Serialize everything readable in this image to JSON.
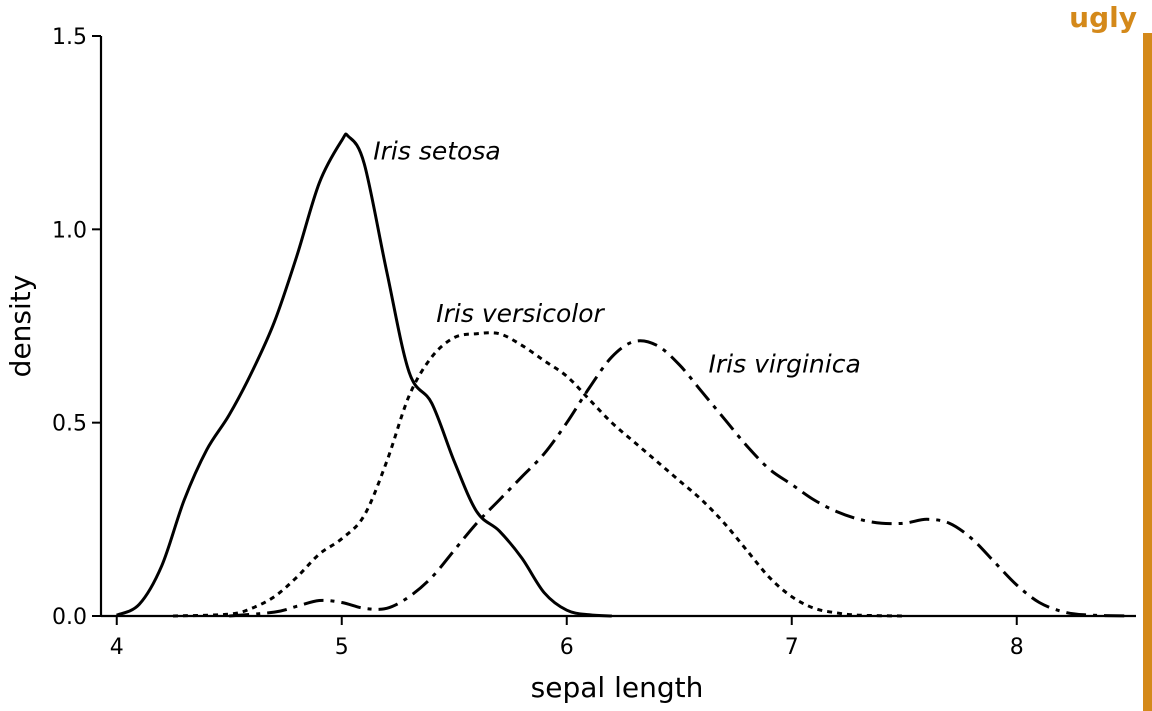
{
  "badge": {
    "text": "ugly",
    "color": "#d4891a"
  },
  "chart_data": {
    "type": "line",
    "title": "",
    "xlabel": "sepal length",
    "ylabel": "density",
    "xlim": [
      3.93,
      8.53
    ],
    "ylim": [
      0,
      1.5
    ],
    "xticks": [
      4,
      5,
      6,
      7,
      8
    ],
    "yticks": [
      0.0,
      0.5,
      1.0,
      1.5
    ],
    "ytick_labels": [
      "0.0",
      "0.5",
      "1.0",
      "1.5"
    ],
    "grid": false,
    "legend": "none",
    "series": [
      {
        "name": "Iris setosa",
        "label_at": [
          5.14,
          1.18
        ],
        "line_style": "solid",
        "x": [
          4.0,
          4.1,
          4.2,
          4.3,
          4.4,
          4.5,
          4.6,
          4.7,
          4.8,
          4.9,
          5.0,
          5.03,
          5.1,
          5.2,
          5.3,
          5.4,
          5.5,
          5.6,
          5.7,
          5.8,
          5.9,
          6.0,
          6.1,
          6.2
        ],
        "values": [
          0.002,
          0.03,
          0.13,
          0.3,
          0.43,
          0.52,
          0.63,
          0.76,
          0.93,
          1.12,
          1.23,
          1.24,
          1.17,
          0.89,
          0.63,
          0.55,
          0.4,
          0.27,
          0.22,
          0.15,
          0.06,
          0.015,
          0.003,
          0.0
        ]
      },
      {
        "name": "Iris versicolor",
        "label_at": [
          5.42,
          0.76
        ],
        "line_style": "dotted",
        "x": [
          4.25,
          4.5,
          4.6,
          4.7,
          4.8,
          4.9,
          5.0,
          5.1,
          5.2,
          5.3,
          5.4,
          5.5,
          5.6,
          5.7,
          5.8,
          5.9,
          6.0,
          6.1,
          6.2,
          6.3,
          6.4,
          6.5,
          6.6,
          6.7,
          6.8,
          6.9,
          7.0,
          7.1,
          7.2,
          7.3,
          7.5
        ],
        "values": [
          0.0,
          0.005,
          0.02,
          0.05,
          0.1,
          0.16,
          0.2,
          0.26,
          0.4,
          0.57,
          0.67,
          0.72,
          0.73,
          0.73,
          0.7,
          0.66,
          0.62,
          0.56,
          0.5,
          0.45,
          0.4,
          0.35,
          0.3,
          0.24,
          0.17,
          0.1,
          0.05,
          0.02,
          0.008,
          0.002,
          0.0
        ]
      },
      {
        "name": "Iris virginica",
        "label_at": [
          6.63,
          0.63
        ],
        "line_style": "dashdot",
        "x": [
          4.5,
          4.7,
          4.8,
          4.9,
          5.0,
          5.1,
          5.2,
          5.3,
          5.4,
          5.5,
          5.6,
          5.7,
          5.8,
          5.9,
          6.0,
          6.1,
          6.2,
          6.3,
          6.4,
          6.5,
          6.6,
          6.7,
          6.8,
          6.9,
          7.0,
          7.1,
          7.2,
          7.3,
          7.4,
          7.5,
          7.6,
          7.7,
          7.8,
          7.9,
          8.0,
          8.1,
          8.2,
          8.3,
          8.5
        ],
        "values": [
          0.0,
          0.01,
          0.025,
          0.04,
          0.035,
          0.02,
          0.02,
          0.05,
          0.1,
          0.17,
          0.24,
          0.3,
          0.36,
          0.42,
          0.5,
          0.59,
          0.67,
          0.71,
          0.7,
          0.65,
          0.58,
          0.51,
          0.44,
          0.38,
          0.34,
          0.3,
          0.27,
          0.25,
          0.24,
          0.24,
          0.25,
          0.24,
          0.2,
          0.14,
          0.08,
          0.035,
          0.012,
          0.003,
          0.0
        ]
      }
    ]
  }
}
